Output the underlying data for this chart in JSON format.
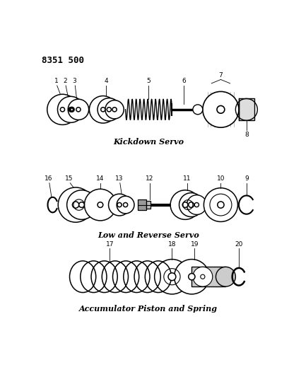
{
  "part_number": "8351 500",
  "bg": "#ffffff",
  "lc": "#000000",
  "title1": "Kickdown Servo",
  "title2": "Low and Reverse Servo",
  "title3": "Accumulator Piston and Spring"
}
